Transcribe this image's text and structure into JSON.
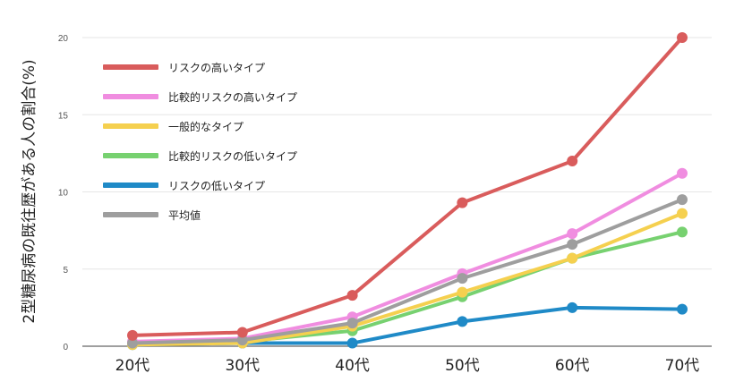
{
  "chart_data": {
    "type": "line",
    "ylabel": "2型糖尿病の既往歴がある人の割合(%)",
    "categories": [
      "20代",
      "30代",
      "40代",
      "50代",
      "60代",
      "70代"
    ],
    "ylim": [
      0,
      20
    ],
    "yticks": [
      0,
      5,
      10,
      15,
      20
    ],
    "grid": true,
    "legend_position": "top-left",
    "series": [
      {
        "name": "リスクの高いタイプ",
        "color": "#d95c5c",
        "values": [
          0.7,
          0.9,
          3.3,
          9.3,
          12.0,
          20.0
        ]
      },
      {
        "name": "比較的リスクの高いタイプ",
        "color": "#f08de0",
        "values": [
          0.3,
          0.5,
          1.9,
          4.7,
          7.3,
          11.2
        ]
      },
      {
        "name": "一般的なタイプ",
        "color": "#f5d04f",
        "values": [
          0.1,
          0.2,
          1.3,
          3.5,
          5.7,
          8.6
        ]
      },
      {
        "name": "比較的リスクの低いタイプ",
        "color": "#77d170",
        "values": [
          0.2,
          0.3,
          1.0,
          3.2,
          5.7,
          7.4
        ]
      },
      {
        "name": "リスクの低いタイプ",
        "color": "#1f8ac7",
        "values": [
          0.1,
          0.2,
          0.2,
          1.6,
          2.5,
          2.4
        ]
      },
      {
        "name": "平均値",
        "color": "#9e9e9e",
        "values": [
          0.2,
          0.4,
          1.5,
          4.4,
          6.6,
          9.5
        ]
      }
    ]
  }
}
